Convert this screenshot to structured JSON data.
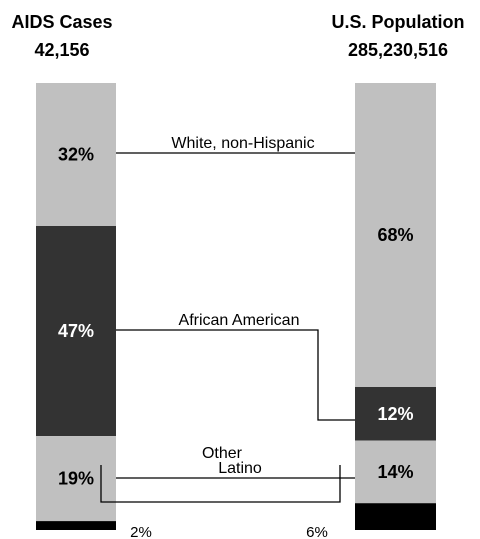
{
  "chart_data": {
    "type": "bar",
    "stacked": true,
    "columns": [
      {
        "title": "AIDS Cases",
        "total": "42,156"
      },
      {
        "title": "U.S. Population",
        "total": "285,230,516"
      }
    ],
    "series": [
      {
        "name": "White, non-Hispanic",
        "values": [
          32,
          68
        ],
        "color": "#c0c0c0"
      },
      {
        "name": "African American",
        "values": [
          47,
          12
        ],
        "color": "#333333"
      },
      {
        "name": "Latino",
        "values": [
          19,
          14
        ],
        "color": "#c0c0c0"
      },
      {
        "name": "Other",
        "values": [
          2,
          6
        ],
        "color": "#000000"
      }
    ],
    "unit": "%"
  },
  "labels": {
    "aids_pcts": [
      "32%",
      "47%",
      "19%",
      "2%"
    ],
    "pop_pcts": [
      "68%",
      "12%",
      "14%",
      "6%"
    ]
  }
}
